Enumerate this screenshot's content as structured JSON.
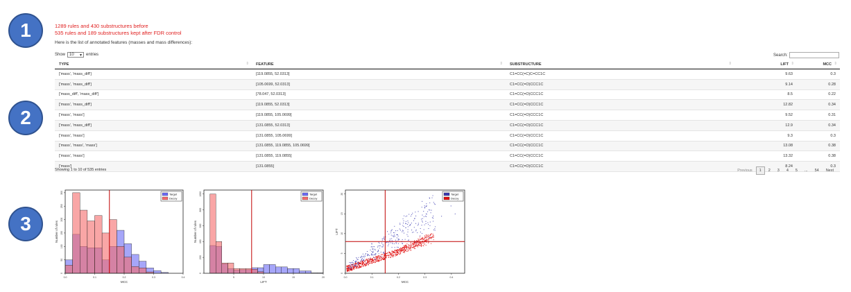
{
  "steps": [
    "1",
    "2",
    "3"
  ],
  "summary": {
    "before": "1289 rules and 430 substructures before",
    "after": "535 rules and 189 substructures kept after FDR control",
    "description": "Here is the list of annotated features (masses and mass differences):"
  },
  "controls": {
    "show_label": "Show",
    "length_value": "10",
    "entries_label": "entries",
    "search_label": "Search:"
  },
  "table": {
    "columns": [
      "TYPE",
      "FEATURE",
      "SUBSTRUCTURE",
      "LIFT",
      "MCC"
    ],
    "rows": [
      [
        "['mass', 'mass_diff']",
        "[119.0855, 52.0313]",
        "C1=CC(=C)C=CC1C",
        "9.63",
        "0.3"
      ],
      [
        "['mass', 'mass_diff']",
        "[105.0699, 52.0313]",
        "C1=CC(=O)CCC1C",
        "9.14",
        "0.28"
      ],
      [
        "['mass_diff', 'mass_diff']",
        "[78.047, 52.0313]",
        "C1=CC(=O)CCC1C",
        "8.5",
        "0.22"
      ],
      [
        "['mass', 'mass_diff']",
        "[119.0855, 52.0313]",
        "C1=CC(=O)CCC1C",
        "12.82",
        "0.34"
      ],
      [
        "['mass', 'mass']",
        "[119.0855, 105.0699]",
        "C1=CC(=O)CCC1C",
        "9.52",
        "0.31"
      ],
      [
        "['mass', 'mass_diff']",
        "[131.0855, 52.0313]",
        "C1=CC(=O)CCC1C",
        "12.9",
        "0.34"
      ],
      [
        "['mass', 'mass']",
        "[131.0855, 105.0699]",
        "C1=CC(=O)CCC1C",
        "9.3",
        "0.3"
      ],
      [
        "['mass', 'mass', 'mass']",
        "[131.0855, 119.0855, 105.0699]",
        "C1=CC(=O)CCC1C",
        "13.08",
        "0.38"
      ],
      [
        "['mass', 'mass']",
        "[131.0855, 119.0855]",
        "C1=CC(=O)CCC1C",
        "13.32",
        "0.38"
      ],
      [
        "['mass']",
        "[131.0855]",
        "C1=CC(=O)CCC1C",
        "8.24",
        "0.3"
      ]
    ],
    "info": "Showing 1 to 10 of 535 entries",
    "pagination": [
      "Previous",
      "1",
      "2",
      "3",
      "4",
      "5",
      "...",
      "54",
      "Next"
    ],
    "current_page": "1"
  },
  "chart_data": [
    {
      "type": "bar",
      "xlabel": "MCC",
      "ylabel": "Number of rules",
      "legend": [
        "Target",
        "Decoy"
      ],
      "legend_position": "top-right",
      "xlim": [
        0.0,
        0.4
      ],
      "x_ticks": [
        "0.0",
        "0.1",
        "0.2",
        "0.3",
        "0.4"
      ],
      "y_ticks": [
        "0",
        "50",
        "100",
        "150",
        "200",
        "250",
        "300"
      ],
      "ylim": [
        0,
        310
      ],
      "threshold_x": 0.15,
      "bin_width": 0.025,
      "series": [
        {
          "name": "Target",
          "color": "#6b6bf5",
          "bins_start": [
            0.0,
            0.025,
            0.05,
            0.075,
            0.1,
            0.125,
            0.15,
            0.175,
            0.2,
            0.225,
            0.25,
            0.275,
            0.3,
            0.325
          ],
          "values": [
            50,
            145,
            100,
            95,
            95,
            50,
            100,
            160,
            110,
            70,
            45,
            20,
            10,
            3
          ]
        },
        {
          "name": "Decoy",
          "color": "#f56b6b",
          "bins_start": [
            0.0,
            0.025,
            0.05,
            0.075,
            0.1,
            0.125,
            0.15,
            0.175,
            0.2,
            0.225,
            0.25,
            0.275
          ],
          "values": [
            30,
            300,
            235,
            195,
            215,
            150,
            200,
            100,
            60,
            25,
            20,
            5
          ]
        }
      ]
    },
    {
      "type": "bar",
      "xlabel": "LIFT",
      "ylabel": "Number of rules",
      "legend": [
        "Target",
        "Decoy"
      ],
      "legend_position": "top-right",
      "xlim": [
        0,
        20
      ],
      "x_ticks": [
        "5",
        "10",
        "15",
        "20"
      ],
      "y_ticks": [
        "0",
        "200",
        "400",
        "600",
        "800",
        "1000"
      ],
      "ylim": [
        0,
        1050
      ],
      "threshold_x": 8,
      "bin_width": 1,
      "series": [
        {
          "name": "Target",
          "color": "#6b6bf5",
          "bins_start": [
            1,
            2,
            3,
            4,
            5,
            6,
            7,
            8,
            9,
            10,
            11,
            12,
            13,
            14,
            15,
            16,
            17,
            18,
            19
          ],
          "values": [
            350,
            340,
            120,
            60,
            40,
            45,
            45,
            70,
            70,
            110,
            110,
            80,
            80,
            60,
            60,
            30,
            30,
            5,
            5
          ]
        },
        {
          "name": "Decoy",
          "color": "#f56b6b",
          "bins_start": [
            1,
            2,
            3,
            4,
            5,
            6,
            7,
            8,
            9
          ],
          "values": [
            1000,
            400,
            130,
            130,
            60,
            60,
            60,
            50,
            20
          ]
        }
      ]
    },
    {
      "type": "scatter",
      "xlabel": "MCC",
      "ylabel": "LIFT",
      "legend": [
        "Target",
        "Decoy"
      ],
      "legend_position": "top-right",
      "xlim": [
        0.0,
        0.45
      ],
      "ylim": [
        0,
        21
      ],
      "x_ticks": [
        "0.0",
        "0.1",
        "0.2",
        "0.3",
        "0.4"
      ],
      "y_ticks": [
        "0",
        "5",
        "10",
        "15",
        "20"
      ],
      "threshold_x": 0.15,
      "threshold_y": 8,
      "series": [
        {
          "name": "Target",
          "color": "#3a3ab0"
        },
        {
          "name": "Decoy",
          "color": "#e01010"
        }
      ]
    }
  ]
}
